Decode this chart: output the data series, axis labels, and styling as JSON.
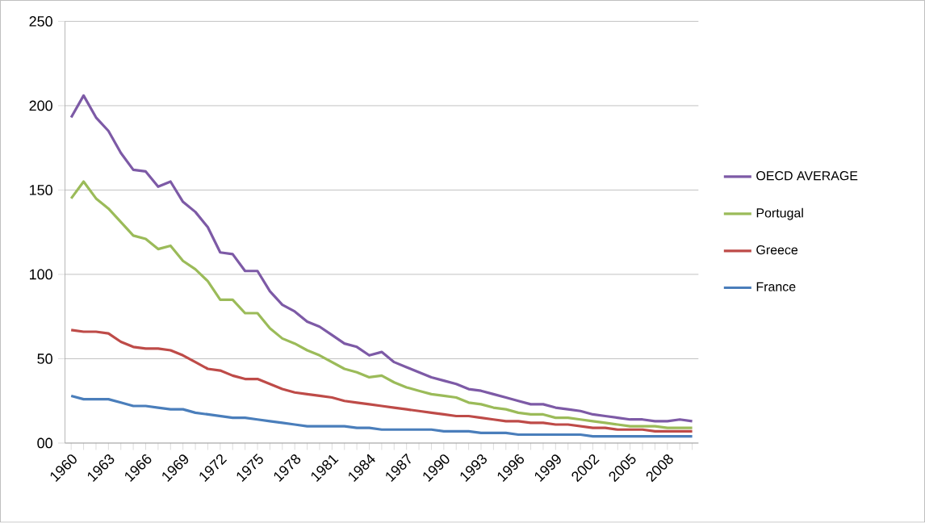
{
  "chart_data": {
    "type": "line",
    "categories": [
      "1960",
      null,
      null,
      "1963",
      null,
      null,
      "1966",
      null,
      null,
      "1969",
      null,
      null,
      "1972",
      null,
      null,
      "1975",
      null,
      null,
      "1978",
      null,
      null,
      "1981",
      null,
      null,
      "1984",
      null,
      null,
      "1987",
      null,
      null,
      "1990",
      null,
      null,
      "1993",
      null,
      null,
      "1996",
      null,
      null,
      "1999",
      null,
      null,
      "2002",
      null,
      null,
      "2005",
      null,
      null,
      "2008",
      null,
      null
    ],
    "ylim": [
      0,
      250
    ],
    "yticks": [
      {
        "value": 0,
        "label": "00"
      },
      50,
      100,
      150,
      200,
      250
    ],
    "grid": "y",
    "legend": "right",
    "marker": "none",
    "line_style": "solid",
    "series": [
      {
        "name": "OECD AVERAGE",
        "color": "#7d5aa6",
        "values": [
          193,
          206,
          193,
          185,
          172,
          162,
          161,
          152,
          155,
          143,
          137,
          128,
          113,
          112,
          102,
          102,
          90,
          82,
          78,
          72,
          69,
          64,
          59,
          57,
          52,
          54,
          48,
          45,
          42,
          39,
          37,
          35,
          32,
          31,
          29,
          27,
          25,
          23,
          23,
          21,
          20,
          19,
          17,
          16,
          15,
          14,
          14,
          13,
          13,
          14,
          13
        ]
      },
      {
        "name": "Portugal",
        "color": "#9bbb59",
        "values": [
          145,
          155,
          145,
          139,
          131,
          123,
          121,
          115,
          117,
          108,
          103,
          96,
          85,
          85,
          77,
          77,
          68,
          62,
          59,
          55,
          52,
          48,
          44,
          42,
          39,
          40,
          36,
          33,
          31,
          29,
          28,
          27,
          24,
          23,
          21,
          20,
          18,
          17,
          17,
          15,
          15,
          14,
          13,
          12,
          11,
          10,
          10,
          10,
          9,
          9,
          9
        ]
      },
      {
        "name": "Greece",
        "color": "#be4b48",
        "values": [
          67,
          66,
          66,
          65,
          60,
          57,
          56,
          56,
          55,
          52,
          48,
          44,
          43,
          40,
          38,
          38,
          35,
          32,
          30,
          29,
          28,
          27,
          25,
          24,
          23,
          22,
          21,
          20,
          19,
          18,
          17,
          16,
          16,
          15,
          14,
          13,
          13,
          12,
          12,
          11,
          11,
          10,
          9,
          9,
          8,
          8,
          8,
          7,
          7,
          7,
          7
        ]
      },
      {
        "name": "France",
        "color": "#4a7ebb",
        "values": [
          28,
          26,
          26,
          26,
          24,
          22,
          22,
          21,
          20,
          20,
          18,
          17,
          16,
          15,
          15,
          14,
          13,
          12,
          11,
          10,
          10,
          10,
          10,
          9,
          9,
          8,
          8,
          8,
          8,
          8,
          7,
          7,
          7,
          6,
          6,
          6,
          5,
          5,
          5,
          5,
          5,
          5,
          4,
          4,
          4,
          4,
          4,
          4,
          4,
          4,
          4
        ]
      }
    ]
  }
}
